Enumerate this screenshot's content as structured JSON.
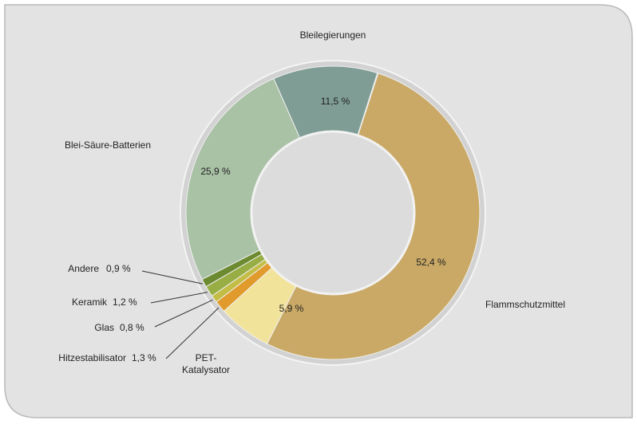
{
  "chart_data": {
    "type": "donut",
    "categories": [
      "Flammschutzmittel",
      "PET-Katalysator",
      "Hitzestabilisator",
      "Glas",
      "Keramik",
      "Andere",
      "Blei-Säure-Batterien",
      "Bleilegierungen"
    ],
    "values": [
      52.4,
      5.9,
      1.3,
      0.8,
      1.2,
      0.9,
      25.9,
      11.5
    ],
    "value_labels": [
      "52,4 %",
      "5,9 %",
      "1,3 %",
      "0,8 %",
      "1,2 %",
      "0,9 %",
      "25,9 %",
      "11,5 %"
    ],
    "colors": [
      "#c9a965",
      "#f2e39b",
      "#e09b2c",
      "#c3bd45",
      "#98ae45",
      "#6c8a30",
      "#a9c1a5",
      "#7f9d95"
    ]
  }
}
